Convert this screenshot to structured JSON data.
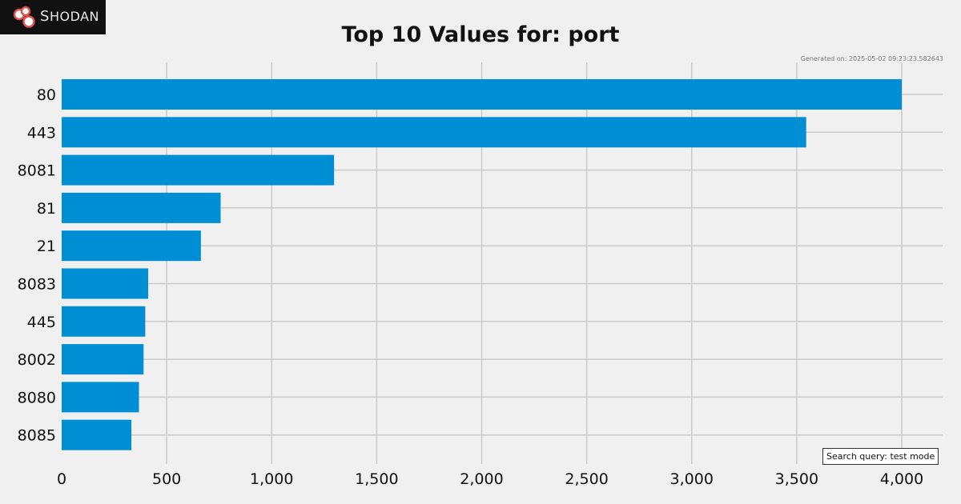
{
  "logo": {
    "text_first": "S",
    "text_rest": "HODAN",
    "icon": "shodan-logo-icon"
  },
  "generated_text": "Generated on: 2025-05-02 09:23:23.582643",
  "query_box_text": "Search query: test mode",
  "colors": {
    "background": "#f0f0f0",
    "bar": "#008fd5",
    "grid": "#cbcbcb",
    "logo_bg": "#111111",
    "logo_accent": "#d9534f"
  },
  "chart_data": {
    "type": "bar",
    "orientation": "horizontal",
    "title": "Top 10 Values for: port",
    "categories": [
      "80",
      "443",
      "8081",
      "81",
      "21",
      "8083",
      "445",
      "8002",
      "8080",
      "8085"
    ],
    "values": [
      4000,
      3545,
      1297,
      757,
      663,
      412,
      398,
      390,
      368,
      332
    ],
    "xlim": [
      0,
      4200
    ],
    "xticks": [
      0,
      500,
      1000,
      1500,
      2000,
      2500,
      3000,
      3500,
      4000
    ],
    "xtick_labels": [
      "0",
      "500",
      "1,000",
      "1,500",
      "2,000",
      "2,500",
      "3,000",
      "3,500",
      "4,000"
    ],
    "grid": true
  }
}
